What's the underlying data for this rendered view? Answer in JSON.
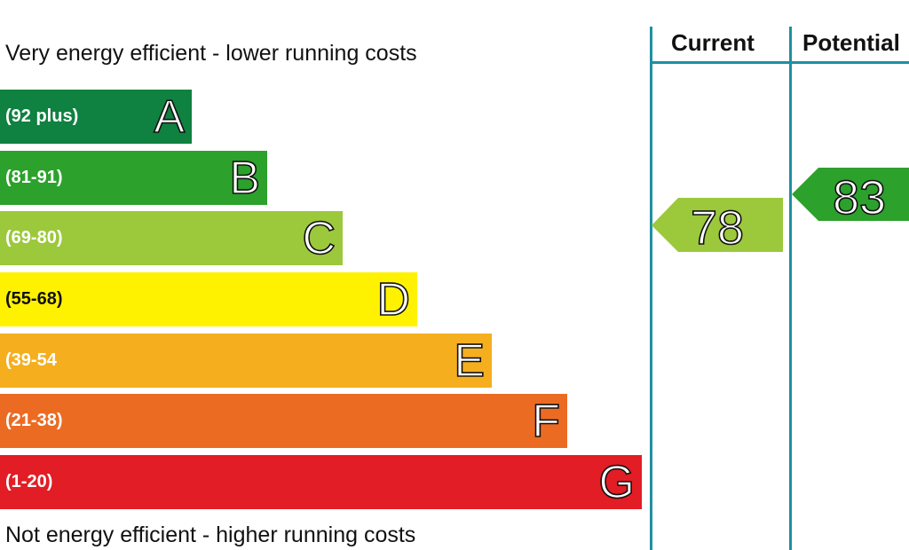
{
  "chart_data": {
    "type": "bar",
    "top_label": "Very energy efficient - lower running costs",
    "bottom_label": "Not energy efficient - higher running costs",
    "bands": [
      {
        "letter": "A",
        "range": "(92 plus)",
        "color": "#0f8140"
      },
      {
        "letter": "B",
        "range": "(81-91)",
        "color": "#2ca12c"
      },
      {
        "letter": "C",
        "range": "(69-80)",
        "color": "#9cc83c"
      },
      {
        "letter": "D",
        "range": "(55-68)",
        "color": "#fff200"
      },
      {
        "letter": "E",
        "range": "(39-54",
        "color": "#f5ae1e"
      },
      {
        "letter": "F",
        "range": "(21-38)",
        "color": "#ec6b23"
      },
      {
        "letter": "G",
        "range": "(1-20)",
        "color": "#e21d25"
      }
    ],
    "columns": [
      "Current",
      "Potential"
    ],
    "current": {
      "value": "78",
      "band": "C",
      "color": "#9cc83c"
    },
    "potential": {
      "value": "83",
      "band": "B",
      "color": "#2ca12c"
    }
  }
}
